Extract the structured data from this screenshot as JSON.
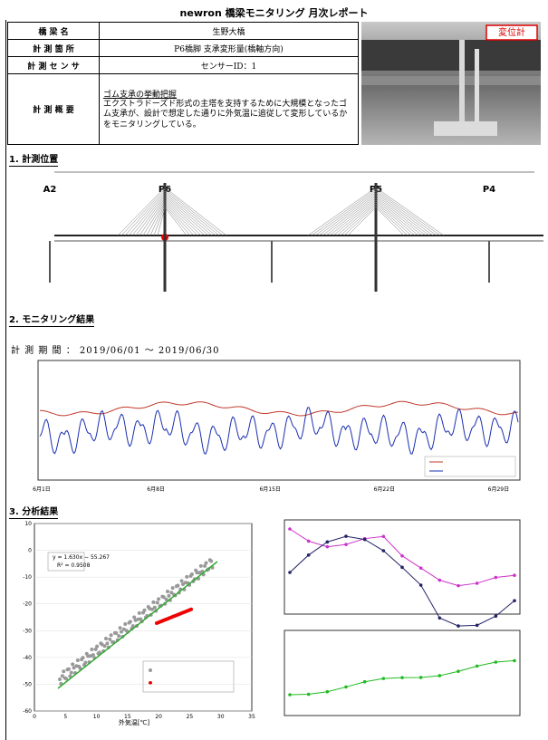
{
  "title": "newron 橋梁モニタリング 月次レポート",
  "info_table": {
    "rows": [
      [
        "橋 梁 名",
        "生野大橋"
      ],
      [
        "計 測 箇 所",
        "P6橋脚 支承変形量(橋軸方向)"
      ],
      [
        "計 測 セ ン サ",
        "センサーID：1"
      ],
      [
        "計 測 概 要",
        "ゴム支承の挙動把握",
        "エクストラドーズド形式の主塔を支持するために大規模となったゴム支承が、設計で想定した通りに外気温に追従して変形しているかをモニタリングしている。"
      ]
    ]
  },
  "photo_label": "変位計",
  "section1": {
    "heading": "1. 計測位置",
    "labels": [
      "A2",
      "P6",
      "P5",
      "P4"
    ]
  },
  "section2": {
    "heading": "2. モニタリング結果",
    "period_label": "計 測 期 間 ：",
    "period": "2019/06/01 〜 2019/06/30",
    "x_labels": [
      "6月1日",
      "6月8日",
      "6月15日",
      "6月22日",
      "6月29日"
    ]
  },
  "section3": {
    "heading": "3. 分析結果",
    "equation": "y = 1.630x − 55.267",
    "r2": "R² = 0.9508",
    "yticks": [
      10,
      0,
      -10,
      -20,
      -30,
      -40,
      -50,
      -60
    ],
    "xticks": [
      0,
      5,
      10,
      15,
      20,
      25,
      30,
      35
    ],
    "x_label": "外気温[℃]"
  }
}
